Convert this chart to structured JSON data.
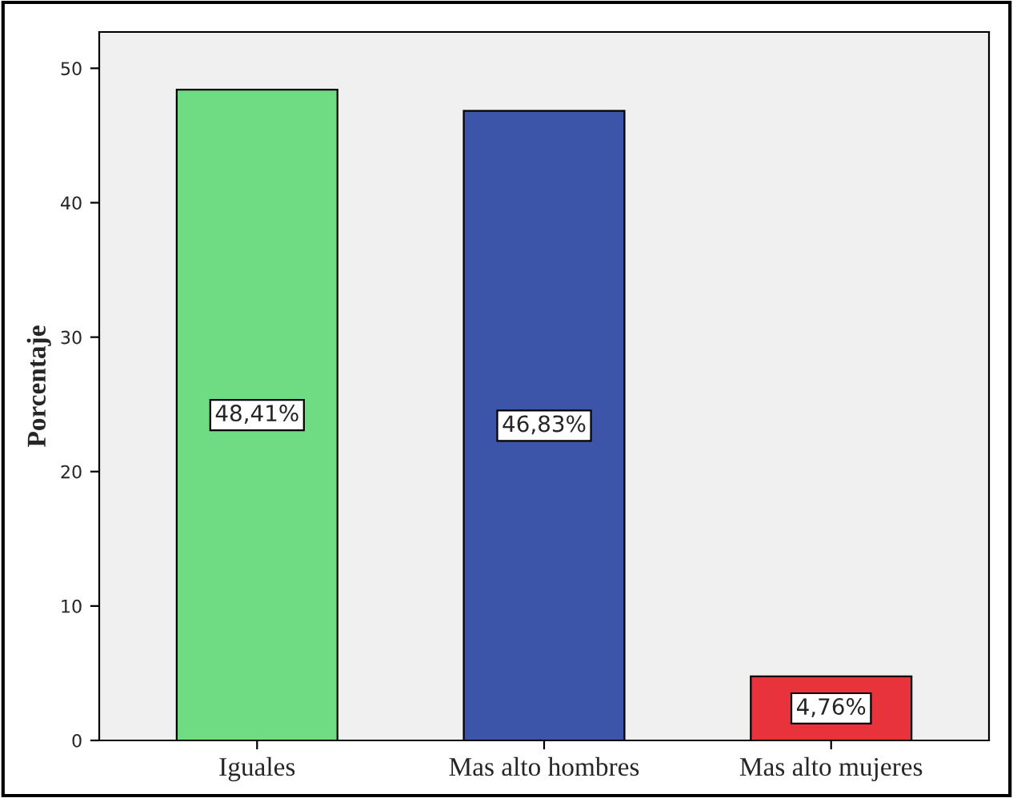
{
  "chart_data": {
    "type": "bar",
    "ylabel": "Porcentaje",
    "categories": [
      "Iguales",
      "Mas alto hombres",
      "Mas alto mujeres"
    ],
    "values": [
      48.41,
      46.83,
      4.76
    ],
    "colors": [
      "#6fdc84",
      "#3d55a8",
      "#e8333c"
    ],
    "value_labels": [
      "48,41%",
      "46,83%",
      "4,76%"
    ],
    "ylim": [
      0,
      52.7
    ],
    "yticks": [
      0,
      10,
      20,
      30,
      40,
      50
    ],
    "grid": false
  }
}
